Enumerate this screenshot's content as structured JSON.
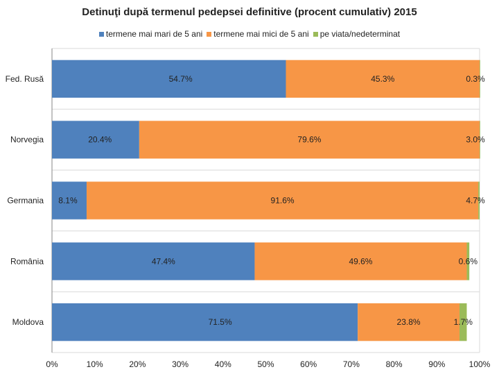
{
  "chart_data": {
    "type": "bar",
    "orientation": "horizontal",
    "stacked": true,
    "title": "Detinuţi după termenul pedepsei definitive (procent cumulativ) 2015",
    "categories": [
      "Fed. Rusă",
      "Norvegia",
      "Germania",
      "România",
      "Moldova"
    ],
    "series": [
      {
        "name": "termene mai mari de 5 ani",
        "color": "#4f81bd",
        "values": [
          54.7,
          20.4,
          8.1,
          47.4,
          71.5
        ],
        "labels": [
          "54.7%",
          "20.4%",
          "8.1%",
          "47.4%",
          "71.5%"
        ]
      },
      {
        "name": "termene mai mici de 5 ani",
        "color": "#f79646",
        "values": [
          45.3,
          79.6,
          91.6,
          49.6,
          23.8
        ],
        "labels": [
          "45.3%",
          "79.6%",
          "91.6%",
          "49.6%",
          "23.8%"
        ]
      },
      {
        "name": "pe viata/nedeterminat",
        "color": "#9bbb59",
        "values": [
          0.3,
          3.0,
          4.7,
          0.6,
          1.7
        ],
        "labels": [
          "0.3%",
          "3.0%",
          "4.7%",
          "0.6%",
          "1.7%"
        ]
      }
    ],
    "xlim": [
      0,
      100
    ],
    "xticks": [
      "0%",
      "10%",
      "20%",
      "30%",
      "40%",
      "50%",
      "60%",
      "70%",
      "80%",
      "90%",
      "100%"
    ],
    "grid": true,
    "legend_position": "top"
  },
  "colors": {
    "gridline": "#d9d9d9",
    "axis": "#868686"
  }
}
